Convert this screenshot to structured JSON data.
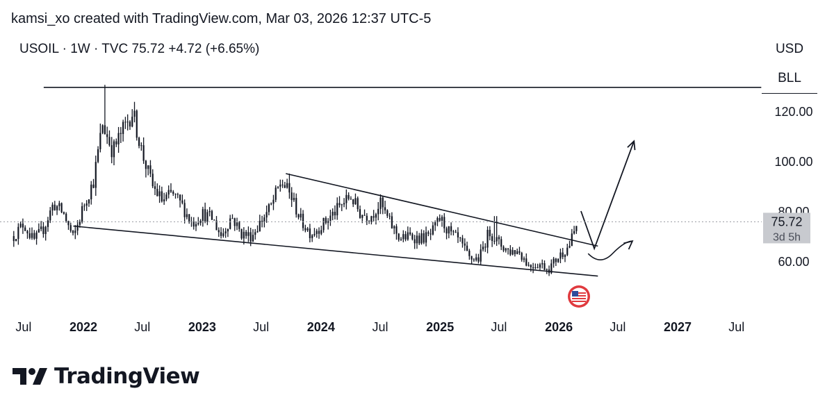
{
  "header": {
    "credit": "kamsi_xo created with TradingView.com, Mar 03, 2026 12:37 UTC-5",
    "symbol_line": "USOIL · 1W · TVC  75.72  +4.72 (+6.65%)"
  },
  "price_scale": {
    "currency": "USD",
    "unit": "BLL",
    "ticks": [
      "120.00",
      "100.00",
      "80.00",
      "60.00"
    ],
    "last_price_label": "75.72",
    "countdown_label": "3d 5h"
  },
  "time_axis": {
    "labels": [
      "Jul",
      "2022",
      "Jul",
      "2023",
      "Jul",
      "2024",
      "Jul",
      "2025",
      "Jul",
      "2026",
      "Jul",
      "2027",
      "Jul"
    ]
  },
  "branding": {
    "logo_text": "TradingView"
  },
  "colors": {
    "candles": "#131722",
    "price_label_bg": "#c8cacf",
    "flag_red": "#e03a3e"
  },
  "chart_data": {
    "type": "candlestick",
    "symbol": "USOIL",
    "interval": "1W",
    "last_close": 75.72,
    "change": 4.72,
    "change_pct": 6.65,
    "ylim": [
      45,
      130
    ],
    "xlim": [
      "2021-05-15",
      "2027-09-15"
    ],
    "y_ticks": [
      120,
      100,
      80,
      60
    ],
    "x_ticks": [
      "2021-07",
      "2022",
      "2022-07",
      "2023",
      "2023-07",
      "2024",
      "2024-07",
      "2025",
      "2025-07",
      "2026",
      "2026-07",
      "2027",
      "2027-07"
    ],
    "price_path": [
      [
        "2021-06",
        70
      ],
      [
        "2021-07",
        75
      ],
      [
        "2021-08",
        68
      ],
      [
        "2021-09",
        73
      ],
      [
        "2021-10",
        83
      ],
      [
        "2021-11",
        79
      ],
      [
        "2021-12",
        69
      ],
      [
        "2022-01",
        82
      ],
      [
        "2022-02",
        92
      ],
      [
        "2022-03",
        115
      ],
      [
        "2022-04",
        104
      ],
      [
        "2022-05",
        112
      ],
      [
        "2022-06",
        120
      ],
      [
        "2022-07",
        103
      ],
      [
        "2022-08",
        90
      ],
      [
        "2022-09",
        84
      ],
      [
        "2022-10",
        87
      ],
      [
        "2022-11",
        82
      ],
      [
        "2022-12",
        75
      ],
      [
        "2023-01",
        79
      ],
      [
        "2023-02",
        77
      ],
      [
        "2023-03",
        70
      ],
      [
        "2023-04",
        78
      ],
      [
        "2023-05",
        71
      ],
      [
        "2023-06",
        70
      ],
      [
        "2023-07",
        76
      ],
      [
        "2023-08",
        82
      ],
      [
        "2023-09",
        92
      ],
      [
        "2023-10",
        86
      ],
      [
        "2023-11",
        76
      ],
      [
        "2023-12",
        71
      ],
      [
        "2024-01",
        74
      ],
      [
        "2024-02",
        78
      ],
      [
        "2024-03",
        82
      ],
      [
        "2024-04",
        86
      ],
      [
        "2024-05",
        79
      ],
      [
        "2024-06",
        78
      ],
      [
        "2024-07",
        83
      ],
      [
        "2024-08",
        75
      ],
      [
        "2024-09",
        69
      ],
      [
        "2024-10",
        70
      ],
      [
        "2024-11",
        69
      ],
      [
        "2024-12",
        70
      ],
      [
        "2025-01",
        77
      ],
      [
        "2025-02",
        71
      ],
      [
        "2025-03",
        68
      ],
      [
        "2025-04",
        61
      ],
      [
        "2025-05",
        61
      ],
      [
        "2025-06",
        72
      ],
      [
        "2025-07",
        67
      ],
      [
        "2025-08",
        64
      ],
      [
        "2025-09",
        64
      ],
      [
        "2025-10",
        58
      ],
      [
        "2025-11",
        59
      ],
      [
        "2025-12",
        57
      ],
      [
        "2026-01",
        62
      ],
      [
        "2026-02",
        66
      ],
      [
        "2026-03",
        75.72
      ]
    ],
    "spike_highs": [
      [
        "2022-03-07",
        130.5
      ],
      [
        "2022-06-08",
        123.7
      ],
      [
        "2023-09-27",
        95
      ],
      [
        "2025-06-20",
        78
      ]
    ],
    "annotations": {
      "resistance_line": {
        "from": [
          "2021-09-01",
          129.5
        ],
        "to": [
          "2027-09-15",
          129.5
        ]
      },
      "wedge_upper": {
        "from": [
          "2023-09-15",
          95
        ],
        "to": [
          "2026-05-01",
          66
        ]
      },
      "wedge_lower": {
        "from": [
          "2021-12-01",
          74
        ],
        "to": [
          "2026-05-01",
          54
        ]
      },
      "projection_up": [
        [
          "2026-03-10",
          80
        ],
        [
          "2026-04-20",
          65
        ],
        [
          "2026-08-20",
          108
        ]
      ],
      "projection_alt": [
        [
          "2026-04-01",
          63
        ],
        [
          "2026-06-15",
          63
        ],
        [
          "2026-08-15",
          68
        ]
      ]
    }
  }
}
